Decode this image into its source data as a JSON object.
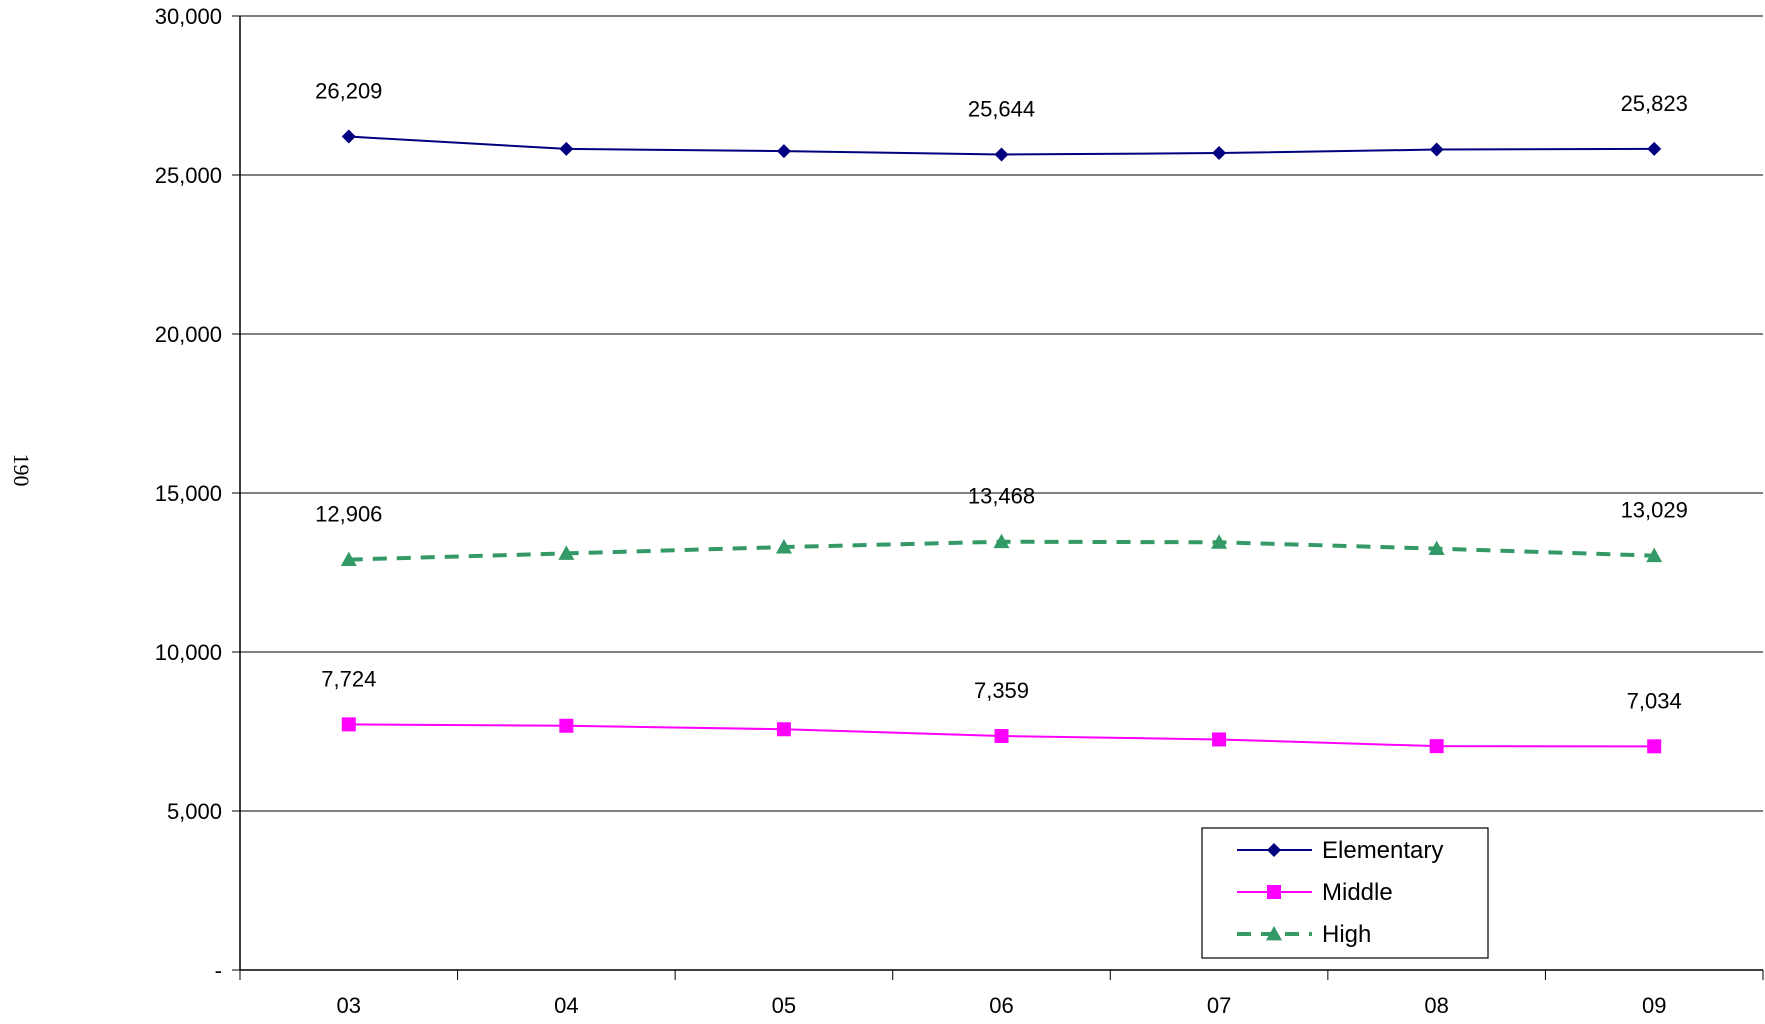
{
  "page": {
    "page_number": "190"
  },
  "chart_data": {
    "type": "line",
    "categories": [
      "03",
      "04",
      "05",
      "06",
      "07",
      "08",
      "09"
    ],
    "ylim": [
      0,
      30000
    ],
    "yticks": [
      0,
      5000,
      10000,
      15000,
      20000,
      25000,
      30000
    ],
    "ytick_labels": [
      "-",
      "5,000",
      "10,000",
      "15,000",
      "20,000",
      "25,000",
      "30,000"
    ],
    "grid": true,
    "legend_position": "bottom-right",
    "series": [
      {
        "name": "Elementary",
        "values": [
          26209,
          25820,
          25750,
          25644,
          25690,
          25800,
          25823
        ],
        "color": "#000080",
        "marker": "diamond",
        "dash": "solid",
        "data_labels": [
          {
            "index": 0,
            "text": "26,209"
          },
          {
            "index": 3,
            "text": "25,644"
          },
          {
            "index": 6,
            "text": "25,823"
          }
        ]
      },
      {
        "name": "Middle",
        "values": [
          7724,
          7680,
          7570,
          7359,
          7250,
          7040,
          7034
        ],
        "color": "#FF00FF",
        "marker": "square",
        "dash": "solid",
        "data_labels": [
          {
            "index": 0,
            "text": "7,724"
          },
          {
            "index": 3,
            "text": "7,359"
          },
          {
            "index": 6,
            "text": "7,034"
          }
        ]
      },
      {
        "name": "High",
        "values": [
          12906,
          13100,
          13300,
          13468,
          13450,
          13250,
          13029
        ],
        "color": "#339966",
        "marker": "triangle",
        "dash": "dashed",
        "data_labels": [
          {
            "index": 0,
            "text": "12,906"
          },
          {
            "index": 3,
            "text": "13,468"
          },
          {
            "index": 6,
            "text": "13,029"
          }
        ]
      }
    ]
  }
}
